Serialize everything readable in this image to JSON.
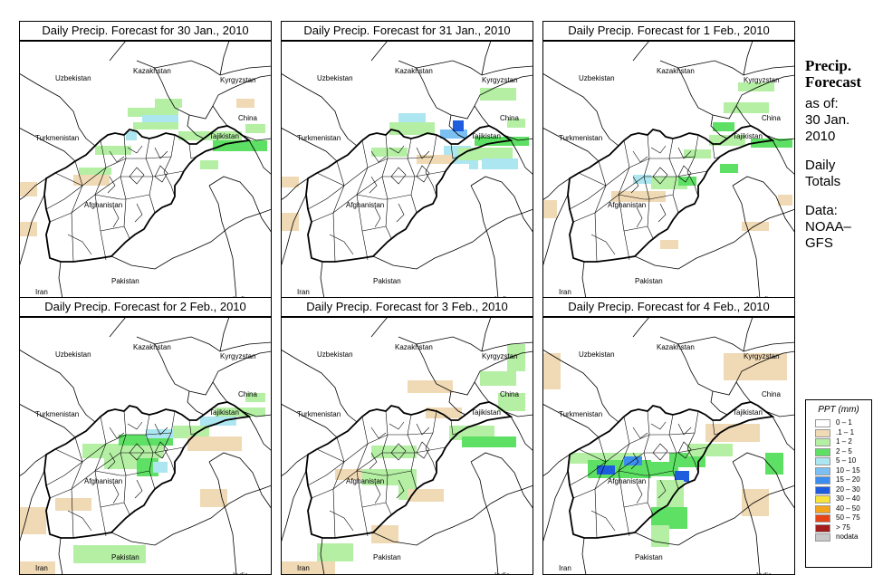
{
  "panels": [
    {
      "title": "Daily Precip. Forecast for  30 Jan., 2010"
    },
    {
      "title": "Daily Precip. Forecast for  31 Jan., 2010"
    },
    {
      "title": "Daily Precip. Forecast for  1 Feb., 2010"
    },
    {
      "title": "Daily Precip. Forecast for  2 Feb., 2010"
    },
    {
      "title": "Daily Precip. Forecast for  3 Feb., 2010"
    },
    {
      "title": "Daily Precip. Forecast for  4 Feb., 2010"
    }
  ],
  "map_labels": {
    "kazakhstan": "Kazakhstan",
    "uzbekistan": "Uzbekistan",
    "kyrgyzstan": "Kyrgyzstan",
    "china": "China",
    "turkmenistan": "Turkmenistan",
    "tajikistan": "Tajikistan",
    "afghanistan": "Afghanistan",
    "pakistan": "Pakistan",
    "iran": "Iran",
    "india": "India"
  },
  "sidebar": {
    "title_line1": "Precip.",
    "title_line2": "Forecast",
    "asof": "as of:",
    "date_line1": "30 Jan.",
    "date_line2": "2010",
    "totals_line1": "Daily",
    "totals_line2": "Totals",
    "data_line1": "Data:",
    "data_line2": "NOAA–",
    "data_line3": "GFS"
  },
  "legend": {
    "title": "PPT (mm)",
    "items": [
      {
        "label": "0 – 1",
        "color": "#ffffff"
      },
      {
        "label": ".1 – 1",
        "color": "#f0d9b5"
      },
      {
        "label": "1 – 2",
        "color": "#b4efa4"
      },
      {
        "label": "2 – 5",
        "color": "#5ee065"
      },
      {
        "label": "5 – 10",
        "color": "#ace6f0"
      },
      {
        "label": "10 – 15",
        "color": "#7cc0f3"
      },
      {
        "label": "15 – 20",
        "color": "#3c8eee"
      },
      {
        "label": "20 – 30",
        "color": "#1d5dde"
      },
      {
        "label": "30 – 40",
        "color": "#f7e33b"
      },
      {
        "label": "40 – 50",
        "color": "#f3a51d"
      },
      {
        "label": "50 – 75",
        "color": "#e64317"
      },
      {
        "label": "> 75",
        "color": "#a31d1d"
      },
      {
        "label": "nodata",
        "color": "#c8c8c8"
      }
    ]
  }
}
